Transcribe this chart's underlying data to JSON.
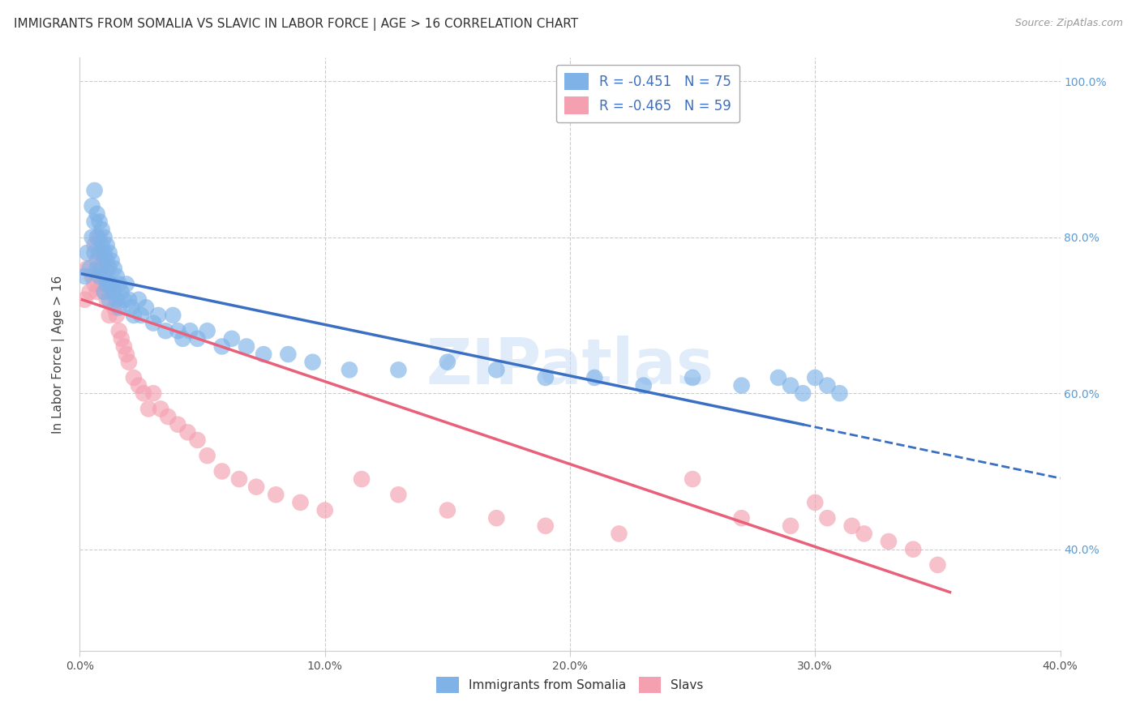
{
  "title": "IMMIGRANTS FROM SOMALIA VS SLAVIC IN LABOR FORCE | AGE > 16 CORRELATION CHART",
  "source": "Source: ZipAtlas.com",
  "ylabel": "In Labor Force | Age > 16",
  "xlim": [
    0.0,
    0.4
  ],
  "ylim": [
    0.27,
    1.03
  ],
  "somalia_R": -0.451,
  "somalia_N": 75,
  "slavs_R": -0.465,
  "slavs_N": 59,
  "somalia_color": "#7fb3e8",
  "slavs_color": "#f4a0b0",
  "somalia_line_color": "#3a6fc4",
  "slavs_line_color": "#e8607a",
  "background_color": "#ffffff",
  "grid_color": "#cccccc",
  "watermark": "ZIPatlas",
  "somalia_x": [
    0.002,
    0.003,
    0.004,
    0.005,
    0.005,
    0.006,
    0.006,
    0.006,
    0.007,
    0.007,
    0.007,
    0.008,
    0.008,
    0.008,
    0.009,
    0.009,
    0.009,
    0.01,
    0.01,
    0.01,
    0.01,
    0.011,
    0.011,
    0.011,
    0.012,
    0.012,
    0.012,
    0.012,
    0.013,
    0.013,
    0.014,
    0.014,
    0.015,
    0.015,
    0.016,
    0.016,
    0.017,
    0.018,
    0.019,
    0.02,
    0.021,
    0.022,
    0.024,
    0.025,
    0.027,
    0.03,
    0.032,
    0.035,
    0.038,
    0.04,
    0.042,
    0.045,
    0.048,
    0.052,
    0.058,
    0.062,
    0.068,
    0.075,
    0.085,
    0.095,
    0.11,
    0.13,
    0.15,
    0.17,
    0.19,
    0.21,
    0.23,
    0.25,
    0.27,
    0.285,
    0.29,
    0.295,
    0.3,
    0.305,
    0.31
  ],
  "somalia_y": [
    0.75,
    0.78,
    0.76,
    0.8,
    0.84,
    0.82,
    0.78,
    0.86,
    0.83,
    0.8,
    0.76,
    0.82,
    0.78,
    0.75,
    0.81,
    0.79,
    0.76,
    0.8,
    0.78,
    0.75,
    0.73,
    0.79,
    0.77,
    0.74,
    0.78,
    0.76,
    0.74,
    0.72,
    0.77,
    0.74,
    0.76,
    0.73,
    0.75,
    0.72,
    0.74,
    0.71,
    0.73,
    0.72,
    0.74,
    0.72,
    0.71,
    0.7,
    0.72,
    0.7,
    0.71,
    0.69,
    0.7,
    0.68,
    0.7,
    0.68,
    0.67,
    0.68,
    0.67,
    0.68,
    0.66,
    0.67,
    0.66,
    0.65,
    0.65,
    0.64,
    0.63,
    0.63,
    0.64,
    0.63,
    0.62,
    0.62,
    0.61,
    0.62,
    0.61,
    0.62,
    0.61,
    0.6,
    0.62,
    0.61,
    0.6
  ],
  "slavs_x": [
    0.002,
    0.003,
    0.004,
    0.005,
    0.006,
    0.006,
    0.007,
    0.007,
    0.008,
    0.008,
    0.009,
    0.009,
    0.01,
    0.01,
    0.011,
    0.011,
    0.012,
    0.012,
    0.013,
    0.014,
    0.015,
    0.016,
    0.017,
    0.018,
    0.019,
    0.02,
    0.022,
    0.024,
    0.026,
    0.028,
    0.03,
    0.033,
    0.036,
    0.04,
    0.044,
    0.048,
    0.052,
    0.058,
    0.065,
    0.072,
    0.08,
    0.09,
    0.1,
    0.115,
    0.13,
    0.15,
    0.17,
    0.19,
    0.22,
    0.25,
    0.27,
    0.29,
    0.3,
    0.305,
    0.315,
    0.32,
    0.33,
    0.34,
    0.35
  ],
  "slavs_y": [
    0.72,
    0.76,
    0.73,
    0.75,
    0.79,
    0.74,
    0.77,
    0.73,
    0.8,
    0.76,
    0.78,
    0.74,
    0.77,
    0.73,
    0.76,
    0.72,
    0.74,
    0.7,
    0.73,
    0.71,
    0.7,
    0.68,
    0.67,
    0.66,
    0.65,
    0.64,
    0.62,
    0.61,
    0.6,
    0.58,
    0.6,
    0.58,
    0.57,
    0.56,
    0.55,
    0.54,
    0.52,
    0.5,
    0.49,
    0.48,
    0.47,
    0.46,
    0.45,
    0.49,
    0.47,
    0.45,
    0.44,
    0.43,
    0.42,
    0.49,
    0.44,
    0.43,
    0.46,
    0.44,
    0.43,
    0.42,
    0.41,
    0.4,
    0.38
  ],
  "somalia_line_x0": 0.001,
  "somalia_line_y0": 0.753,
  "somalia_line_x1": 0.295,
  "somalia_line_y1": 0.56,
  "slavs_line_x0": 0.001,
  "slavs_line_y0": 0.72,
  "slavs_line_x1": 0.355,
  "slavs_line_y1": 0.345
}
